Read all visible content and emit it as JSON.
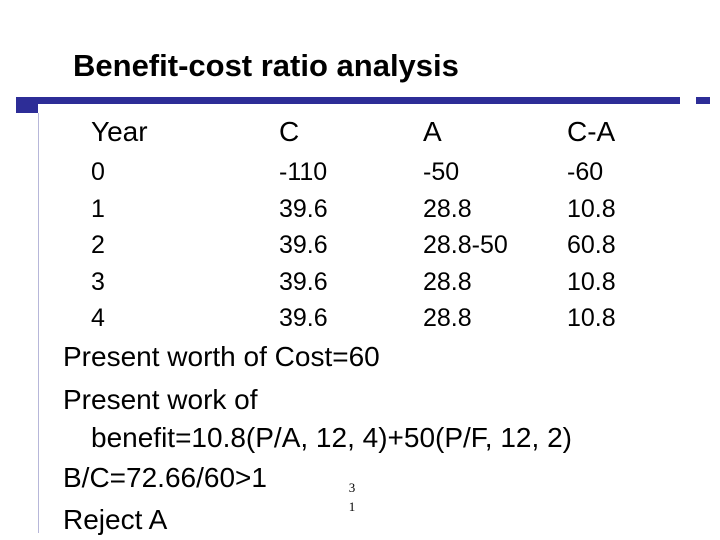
{
  "slide": {
    "title": "Benefit-cost ratio analysis",
    "page_number": "3 1",
    "colors": {
      "accent": "#2d2d97",
      "rule": "#b7b7d9"
    }
  },
  "table": {
    "headers": [
      "Year",
      "C",
      "A",
      "C-A"
    ],
    "rows": [
      [
        "0",
        "-110",
        "-50",
        "-60"
      ],
      [
        "1",
        "39.6",
        "28.8",
        "10.8"
      ],
      [
        "2",
        "39.6",
        "28.8-50",
        "60.8"
      ],
      [
        "3",
        "39.6",
        "28.8",
        "10.8"
      ],
      [
        "4",
        "39.6",
        "28.8",
        "10.8"
      ]
    ]
  },
  "lines": [
    "Present worth of Cost=60",
    "Present work of",
    "benefit=10.8(P/A, 12, 4)+50(P/F, 12, 2)",
    "B/C=72.66/60>1",
    "Reject A"
  ]
}
